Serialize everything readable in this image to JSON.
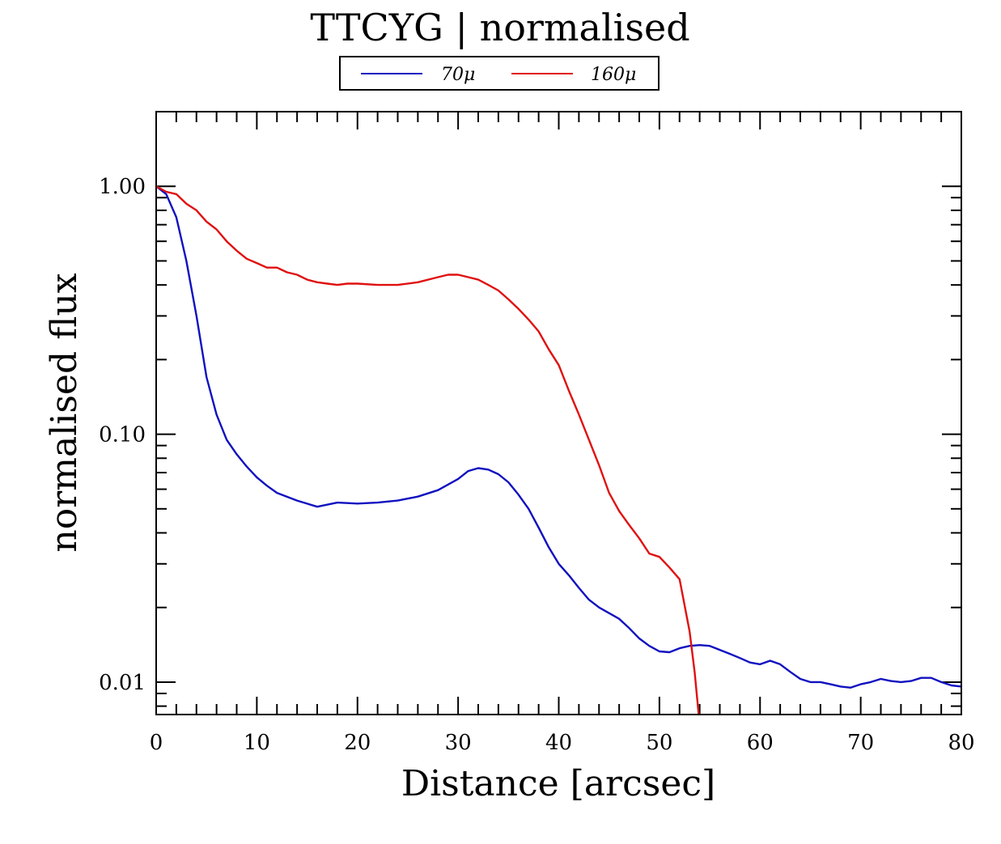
{
  "chart_data": {
    "type": "line",
    "title": "TTCYG | normalised",
    "xlabel": "Distance [arcsec]",
    "ylabel": "normalised flux",
    "xscale": "linear",
    "yscale": "log",
    "xlim": [
      0,
      80
    ],
    "ylim": [
      0.0074,
      2.0
    ],
    "xticks": [
      0,
      10,
      20,
      30,
      40,
      50,
      60,
      70,
      80
    ],
    "xtick_labels": [
      "0",
      "10",
      "20",
      "30",
      "40",
      "50",
      "60",
      "70",
      "80"
    ],
    "yticks": [
      1.0,
      0.1,
      0.01
    ],
    "ytick_labels": [
      "1.00",
      "0.10",
      "0.01"
    ],
    "legend_position": "top-center",
    "grid": false,
    "series": [
      {
        "name": "70μ",
        "color": "#1010c0",
        "points": [
          [
            0,
            1.0
          ],
          [
            1,
            0.93
          ],
          [
            2,
            0.75
          ],
          [
            3,
            0.5
          ],
          [
            4,
            0.3
          ],
          [
            5,
            0.17
          ],
          [
            6,
            0.12
          ],
          [
            7,
            0.095
          ],
          [
            8,
            0.083
          ],
          [
            9,
            0.074
          ],
          [
            10,
            0.067
          ],
          [
            11,
            0.062
          ],
          [
            12,
            0.058
          ],
          [
            14,
            0.054
          ],
          [
            16,
            0.051
          ],
          [
            18,
            0.053
          ],
          [
            20,
            0.0525
          ],
          [
            22,
            0.053
          ],
          [
            24,
            0.054
          ],
          [
            26,
            0.056
          ],
          [
            28,
            0.0595
          ],
          [
            30,
            0.066
          ],
          [
            31,
            0.071
          ],
          [
            32,
            0.073
          ],
          [
            33,
            0.072
          ],
          [
            34,
            0.069
          ],
          [
            35,
            0.064
          ],
          [
            36,
            0.057
          ],
          [
            37,
            0.05
          ],
          [
            38,
            0.042
          ],
          [
            39,
            0.035
          ],
          [
            40,
            0.03
          ],
          [
            41,
            0.027
          ],
          [
            42,
            0.024
          ],
          [
            43,
            0.0215
          ],
          [
            44,
            0.02
          ],
          [
            46,
            0.018
          ],
          [
            47,
            0.0165
          ],
          [
            48,
            0.015
          ],
          [
            49,
            0.014
          ],
          [
            50,
            0.0133
          ],
          [
            51,
            0.0132
          ],
          [
            52,
            0.0137
          ],
          [
            53,
            0.014
          ],
          [
            54,
            0.0141
          ],
          [
            55,
            0.014
          ],
          [
            57,
            0.013
          ],
          [
            58,
            0.0125
          ],
          [
            59,
            0.012
          ],
          [
            60,
            0.0118
          ],
          [
            61,
            0.0122
          ],
          [
            62,
            0.0118
          ],
          [
            63,
            0.011
          ],
          [
            64,
            0.0103
          ],
          [
            65,
            0.01
          ],
          [
            66,
            0.01
          ],
          [
            67,
            0.0098
          ],
          [
            68,
            0.0096
          ],
          [
            69,
            0.0095
          ],
          [
            70,
            0.0098
          ],
          [
            71,
            0.01
          ],
          [
            72,
            0.0103
          ],
          [
            73,
            0.0101
          ],
          [
            74,
            0.01
          ],
          [
            75,
            0.0101
          ],
          [
            76,
            0.0104
          ],
          [
            77,
            0.0104
          ],
          [
            78,
            0.01
          ],
          [
            79,
            0.0097
          ],
          [
            80,
            0.0096
          ]
        ]
      },
      {
        "name": "160μ",
        "color": "#e01010",
        "points": [
          [
            0,
            1.0
          ],
          [
            1,
            0.95
          ],
          [
            2,
            0.93
          ],
          [
            3,
            0.85
          ],
          [
            4,
            0.8
          ],
          [
            5,
            0.72
          ],
          [
            6,
            0.67
          ],
          [
            7,
            0.6
          ],
          [
            8,
            0.55
          ],
          [
            9,
            0.51
          ],
          [
            10,
            0.49
          ],
          [
            11,
            0.47
          ],
          [
            12,
            0.47
          ],
          [
            13,
            0.45
          ],
          [
            14,
            0.44
          ],
          [
            15,
            0.42
          ],
          [
            16,
            0.41
          ],
          [
            17,
            0.405
          ],
          [
            18,
            0.4
          ],
          [
            19,
            0.405
          ],
          [
            20,
            0.405
          ],
          [
            22,
            0.4
          ],
          [
            24,
            0.4
          ],
          [
            26,
            0.41
          ],
          [
            28,
            0.43
          ],
          [
            29,
            0.44
          ],
          [
            30,
            0.44
          ],
          [
            31,
            0.43
          ],
          [
            32,
            0.42
          ],
          [
            33,
            0.4
          ],
          [
            34,
            0.38
          ],
          [
            35,
            0.35
          ],
          [
            36,
            0.32
          ],
          [
            37,
            0.29
          ],
          [
            38,
            0.26
          ],
          [
            39,
            0.22
          ],
          [
            40,
            0.19
          ],
          [
            41,
            0.15
          ],
          [
            42,
            0.12
          ],
          [
            43,
            0.095
          ],
          [
            44,
            0.075
          ],
          [
            45,
            0.058
          ],
          [
            46,
            0.049
          ],
          [
            47,
            0.043
          ],
          [
            48,
            0.038
          ],
          [
            49,
            0.033
          ],
          [
            50,
            0.032
          ],
          [
            51,
            0.029
          ],
          [
            52,
            0.026
          ],
          [
            53,
            0.016
          ],
          [
            53.5,
            0.011
          ],
          [
            53.9,
            0.0074
          ]
        ]
      }
    ]
  }
}
